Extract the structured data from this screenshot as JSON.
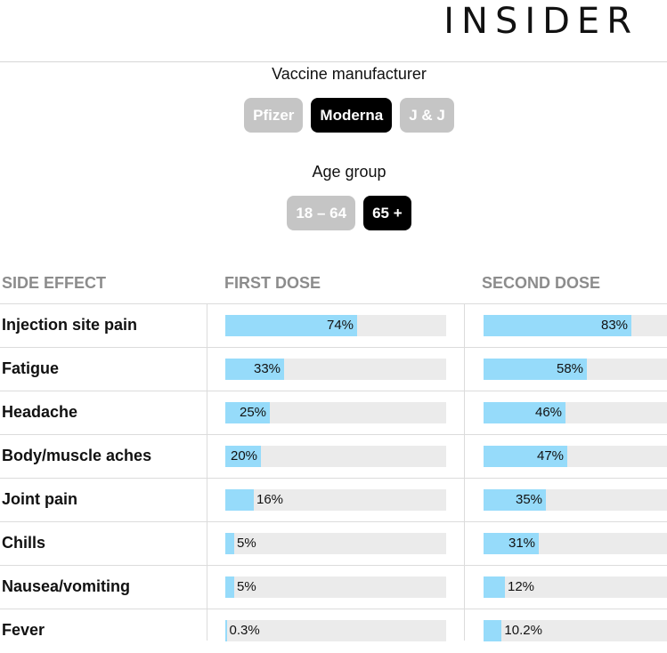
{
  "brand": "INSIDER",
  "manufacturer_label": "Vaccine manufacturer",
  "manufacturer_buttons": [
    {
      "label": "Pfizer",
      "active": false
    },
    {
      "label": "Moderna",
      "active": true
    },
    {
      "label": "J & J",
      "active": false
    }
  ],
  "age_label": "Age group",
  "age_buttons": [
    {
      "label": "18 – 64",
      "active": false
    },
    {
      "label": "65 +",
      "active": true
    }
  ],
  "colors": {
    "bar_fill": "#96dbfa",
    "bar_track": "#ebebeb",
    "active_button": "#000000",
    "inactive_button": "#c5c5c5"
  },
  "chart_data": {
    "type": "bar",
    "columns": [
      "SIDE EFFECT",
      "FIRST DOSE",
      "SECOND DOSE"
    ],
    "categories": [
      "Injection site pain",
      "Fatigue",
      "Headache",
      "Body/muscle aches",
      "Joint pain",
      "Chills",
      "Nausea/vomiting",
      "Fever"
    ],
    "series": [
      {
        "name": "FIRST DOSE",
        "values": [
          74,
          33,
          25,
          20,
          16,
          5,
          5,
          0.3
        ],
        "labels": [
          "74%",
          "33%",
          "25%",
          "20%",
          "16%",
          "5%",
          "5%",
          "0.3%"
        ]
      },
      {
        "name": "SECOND DOSE",
        "values": [
          83,
          58,
          46,
          47,
          35,
          31,
          12,
          10.2
        ],
        "labels": [
          "83%",
          "58%",
          "46%",
          "47%",
          "35%",
          "31%",
          "12%",
          "10.2%"
        ]
      }
    ],
    "ylim": [
      0,
      100
    ]
  }
}
